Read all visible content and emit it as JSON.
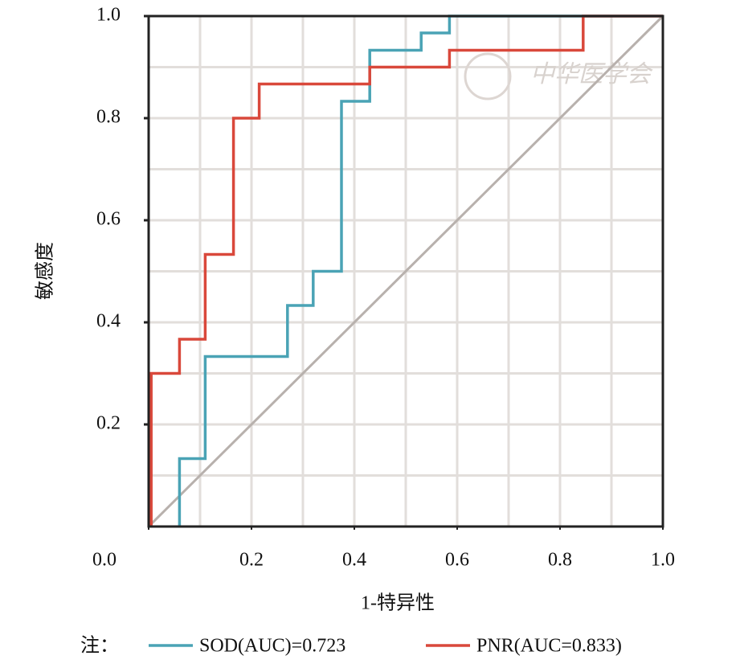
{
  "chart_data": {
    "type": "line",
    "step": true,
    "x_label": "1-特异性",
    "y_label": "敏感度",
    "legend_note": "注：",
    "watermark": "中华医学会",
    "xlim": [
      0,
      1
    ],
    "ylim": [
      0,
      1
    ],
    "xticks": [
      {
        "value": 0,
        "label": "0.0"
      },
      0.2,
      0.4,
      0.6,
      0.8,
      {
        "value": 1,
        "label": "1.0"
      }
    ],
    "yticks": [
      0.2,
      0.4,
      0.6,
      0.8,
      {
        "value": 1,
        "label": "1.0"
      }
    ],
    "grid": true,
    "xgrid": [
      0.1,
      0.2,
      0.3,
      0.4,
      0.5,
      0.6,
      0.7,
      0.8,
      0.9
    ],
    "ygrid": [
      0.1,
      0.2,
      0.3,
      0.4,
      0.5,
      0.6,
      0.7,
      0.8,
      0.9
    ],
    "grid_color": "#e2dedb",
    "reference_line": {
      "x": [
        0,
        1
      ],
      "y": [
        0,
        1
      ],
      "color": "#b8b1ad"
    },
    "series": [
      {
        "name": "SOD(AUC)=0.723",
        "color": "#4aa3b5",
        "x": [
          0.06,
          0.06,
          0.11,
          0.11,
          0.27,
          0.27,
          0.32,
          0.32,
          0.375,
          0.375,
          0.43,
          0.43,
          0.53,
          0.53,
          0.585,
          0.585,
          1
        ],
        "values": [
          0,
          0.133,
          0.133,
          0.333,
          0.333,
          0.433,
          0.433,
          0.5,
          0.5,
          0.833,
          0.833,
          0.933,
          0.933,
          0.967,
          0.967,
          1,
          1
        ]
      },
      {
        "name": "PNR(AUC=0.833)",
        "color": "#d9483b",
        "x": [
          0.005,
          0.005,
          0.06,
          0.06,
          0.11,
          0.11,
          0.165,
          0.165,
          0.215,
          0.215,
          0.43,
          0.43,
          0.585,
          0.585,
          0.845,
          0.845,
          1
        ],
        "values": [
          0,
          0.3,
          0.3,
          0.367,
          0.367,
          0.533,
          0.533,
          0.8,
          0.8,
          0.867,
          0.867,
          0.9,
          0.9,
          0.933,
          0.933,
          1,
          1
        ]
      }
    ]
  }
}
